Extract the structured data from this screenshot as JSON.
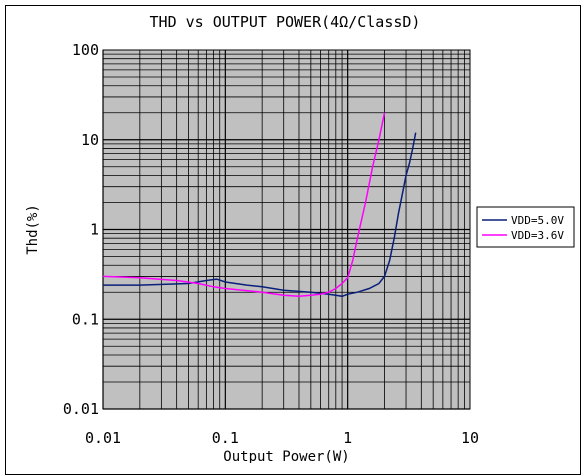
{
  "chart_data": {
    "type": "line",
    "title": "THD vs OUTPUT POWER(4Ω/ClassD)",
    "xlabel": "Output Power(W)",
    "ylabel": "Thd(%)",
    "x_scale": "log",
    "y_scale": "log",
    "xlim": [
      0.01,
      10
    ],
    "ylim": [
      0.01,
      100
    ],
    "x_ticks": [
      "0.01",
      "0.1",
      "1",
      "10"
    ],
    "y_ticks": [
      "0.01",
      "0.1",
      "1",
      "10",
      "100"
    ],
    "grid": true,
    "plot_background": "#c0c0c0",
    "legend": {
      "placement": "right"
    },
    "series": [
      {
        "name": "VDD=5.0V",
        "color": "#0a1f7a",
        "x": [
          0.01,
          0.02,
          0.05,
          0.07,
          0.085,
          0.1,
          0.15,
          0.2,
          0.3,
          0.5,
          0.7,
          0.8,
          0.9,
          1.0,
          1.2,
          1.5,
          1.8,
          2.0,
          2.2,
          2.4,
          2.6,
          2.8,
          3.0,
          3.2,
          3.4,
          3.6
        ],
        "y": [
          0.24,
          0.24,
          0.25,
          0.27,
          0.28,
          0.26,
          0.24,
          0.23,
          0.21,
          0.2,
          0.19,
          0.185,
          0.18,
          0.19,
          0.2,
          0.22,
          0.25,
          0.3,
          0.45,
          0.8,
          1.5,
          2.5,
          4.0,
          5.5,
          8.0,
          12.0
        ]
      },
      {
        "name": "VDD=3.6V",
        "color": "#ff00ff",
        "x": [
          0.01,
          0.02,
          0.04,
          0.06,
          0.08,
          0.1,
          0.2,
          0.3,
          0.4,
          0.5,
          0.6,
          0.7,
          0.8,
          0.9,
          1.0,
          1.1,
          1.2,
          1.4,
          1.6,
          1.8,
          2.0
        ],
        "y": [
          0.3,
          0.29,
          0.27,
          0.25,
          0.23,
          0.22,
          0.2,
          0.185,
          0.18,
          0.185,
          0.19,
          0.2,
          0.22,
          0.25,
          0.29,
          0.45,
          0.8,
          2.0,
          5.0,
          10.0,
          20.0
        ]
      }
    ]
  }
}
